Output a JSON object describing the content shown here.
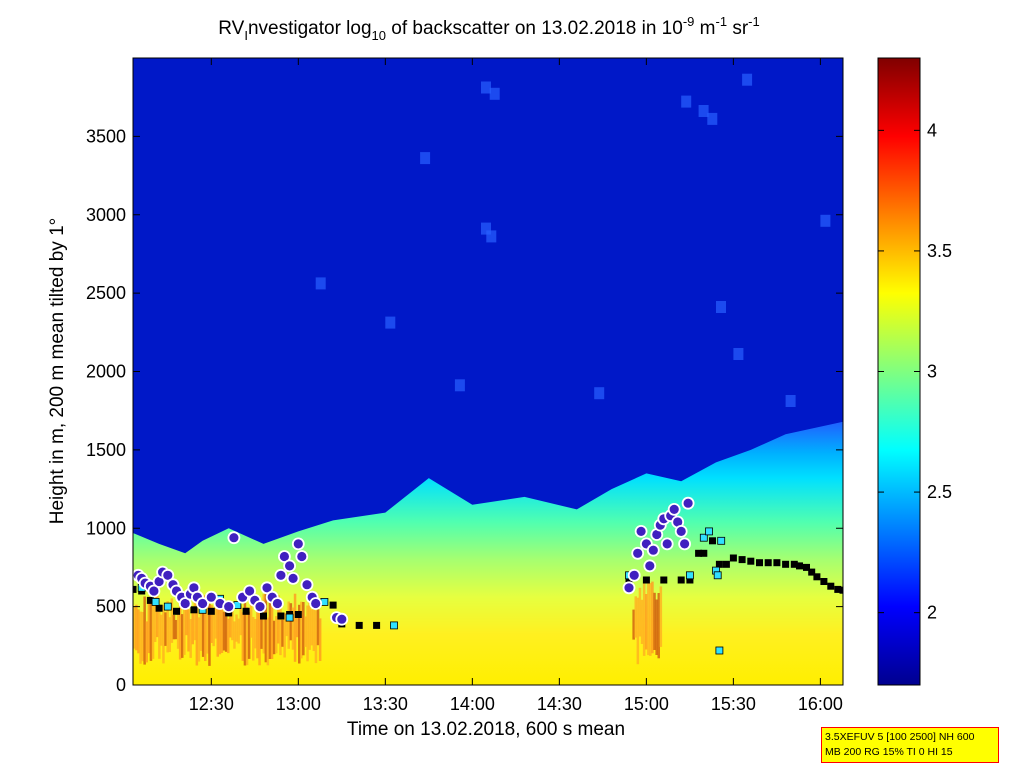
{
  "chart_data": {
    "type": "heatmap",
    "title": {
      "prefix": "RV",
      "prefix_sub": "I",
      "main": "nvestigator log",
      "log_sub": "10",
      "rest": " of backscatter on 13.02.2018 in 10",
      "exp1": "-9",
      "unit1": " m",
      "exp2": "-1",
      "unit2": " sr",
      "exp3": "-1"
    },
    "xlabel": "Time on 13.02.2018, 600 s mean",
    "ylabel": "Height in m, 200 m mean tilted by 1°",
    "x_range_hours": [
      12.05,
      16.13
    ],
    "ylim": [
      0,
      4000
    ],
    "x_ticks": [
      {
        "hour": 12.5,
        "label": "12:30"
      },
      {
        "hour": 13.0,
        "label": "13:00"
      },
      {
        "hour": 13.5,
        "label": "13:30"
      },
      {
        "hour": 14.0,
        "label": "14:00"
      },
      {
        "hour": 14.5,
        "label": "14:30"
      },
      {
        "hour": 15.0,
        "label": "15:00"
      },
      {
        "hour": 15.5,
        "label": "15:30"
      },
      {
        "hour": 16.0,
        "label": "16:00"
      }
    ],
    "y_ticks": [
      0,
      500,
      1000,
      1500,
      2000,
      2500,
      3000,
      3500
    ],
    "colorbar": {
      "range": [
        1.7,
        4.3
      ],
      "ticks": [
        "2",
        "2.5",
        "3",
        "3.5",
        "4"
      ],
      "colormap": [
        "#00008f",
        "#0000ff",
        "#0080ff",
        "#00ffff",
        "#80ff80",
        "#ffff00",
        "#ff8000",
        "#ff0000",
        "#800000"
      ]
    },
    "boundary_upper_m": [
      [
        12.05,
        970
      ],
      [
        12.2,
        900
      ],
      [
        12.35,
        840
      ],
      [
        12.45,
        920
      ],
      [
        12.6,
        1000
      ],
      [
        12.8,
        900
      ],
      [
        13.0,
        980
      ],
      [
        13.2,
        1050
      ],
      [
        13.5,
        1100
      ],
      [
        13.75,
        1320
      ],
      [
        14.0,
        1150
      ],
      [
        14.3,
        1200
      ],
      [
        14.6,
        1120
      ],
      [
        14.8,
        1250
      ],
      [
        15.0,
        1350
      ],
      [
        15.2,
        1300
      ],
      [
        15.4,
        1420
      ],
      [
        15.6,
        1500
      ],
      [
        15.8,
        1600
      ],
      [
        16.13,
        1680
      ]
    ],
    "mixed_layer_top_m": [
      [
        12.05,
        650
      ],
      [
        12.3,
        620
      ],
      [
        12.6,
        600
      ],
      [
        13.0,
        580
      ],
      [
        13.3,
        540
      ],
      [
        13.6,
        560
      ],
      [
        14.0,
        620
      ],
      [
        14.3,
        640
      ],
      [
        14.6,
        650
      ],
      [
        15.0,
        700
      ],
      [
        15.3,
        740
      ],
      [
        15.6,
        780
      ],
      [
        15.9,
        780
      ],
      [
        16.13,
        730
      ]
    ],
    "cloud_points": [
      [
        12.08,
        700
      ],
      [
        12.1,
        680
      ],
      [
        12.12,
        650
      ],
      [
        12.15,
        630
      ],
      [
        12.17,
        600
      ],
      [
        12.2,
        660
      ],
      [
        12.22,
        720
      ],
      [
        12.25,
        700
      ],
      [
        12.28,
        640
      ],
      [
        12.3,
        600
      ],
      [
        12.33,
        560
      ],
      [
        12.35,
        520
      ],
      [
        12.38,
        580
      ],
      [
        12.4,
        620
      ],
      [
        12.42,
        560
      ],
      [
        12.45,
        520
      ],
      [
        12.5,
        560
      ],
      [
        12.55,
        520
      ],
      [
        12.6,
        500
      ],
      [
        12.63,
        940
      ],
      [
        12.68,
        560
      ],
      [
        12.72,
        600
      ],
      [
        12.75,
        540
      ],
      [
        12.78,
        500
      ],
      [
        12.82,
        620
      ],
      [
        12.85,
        560
      ],
      [
        12.88,
        520
      ],
      [
        12.9,
        700
      ],
      [
        12.92,
        820
      ],
      [
        12.95,
        760
      ],
      [
        12.97,
        680
      ],
      [
        13.0,
        900
      ],
      [
        13.02,
        820
      ],
      [
        13.05,
        640
      ],
      [
        13.08,
        560
      ],
      [
        13.1,
        520
      ],
      [
        13.22,
        430
      ],
      [
        13.25,
        420
      ],
      [
        14.9,
        620
      ],
      [
        14.93,
        700
      ],
      [
        14.95,
        840
      ],
      [
        14.97,
        980
      ],
      [
        15.0,
        900
      ],
      [
        15.02,
        760
      ],
      [
        15.04,
        860
      ],
      [
        15.06,
        960
      ],
      [
        15.08,
        1020
      ],
      [
        15.1,
        1060
      ],
      [
        15.12,
        900
      ],
      [
        15.14,
        1080
      ],
      [
        15.16,
        1120
      ],
      [
        15.18,
        1040
      ],
      [
        15.2,
        980
      ],
      [
        15.22,
        900
      ],
      [
        15.24,
        1160
      ]
    ],
    "aerosol_layer_black": [
      [
        12.05,
        610
      ],
      [
        12.1,
        600
      ],
      [
        12.15,
        540
      ],
      [
        12.2,
        490
      ],
      [
        12.3,
        470
      ],
      [
        12.4,
        480
      ],
      [
        12.5,
        470
      ],
      [
        12.6,
        460
      ],
      [
        12.7,
        470
      ],
      [
        12.8,
        440
      ],
      [
        12.9,
        440
      ],
      [
        12.95,
        450
      ],
      [
        13.0,
        450
      ],
      [
        13.1,
        530
      ],
      [
        13.2,
        510
      ],
      [
        13.25,
        390
      ],
      [
        13.35,
        380
      ],
      [
        13.45,
        380
      ],
      [
        13.55,
        380
      ],
      [
        14.9,
        670
      ],
      [
        15.0,
        670
      ],
      [
        15.1,
        670
      ],
      [
        15.2,
        670
      ],
      [
        15.25,
        670
      ],
      [
        15.3,
        840
      ],
      [
        15.33,
        840
      ],
      [
        15.38,
        920
      ],
      [
        15.42,
        770
      ],
      [
        15.46,
        770
      ],
      [
        15.5,
        810
      ],
      [
        15.55,
        800
      ],
      [
        15.6,
        790
      ],
      [
        15.65,
        780
      ],
      [
        15.7,
        780
      ],
      [
        15.75,
        780
      ],
      [
        15.8,
        770
      ],
      [
        15.85,
        770
      ],
      [
        15.88,
        760
      ],
      [
        15.92,
        750
      ],
      [
        15.95,
        720
      ],
      [
        15.98,
        690
      ],
      [
        16.02,
        660
      ],
      [
        16.06,
        630
      ],
      [
        16.1,
        610
      ],
      [
        16.13,
        605
      ]
    ],
    "aerosol_layer_cyan": [
      [
        12.1,
        620
      ],
      [
        12.18,
        530
      ],
      [
        12.25,
        500
      ],
      [
        12.45,
        480
      ],
      [
        12.55,
        550
      ],
      [
        12.65,
        510
      ],
      [
        12.95,
        430
      ],
      [
        13.15,
        530
      ],
      [
        13.25,
        410
      ],
      [
        13.55,
        380
      ],
      [
        14.9,
        700
      ],
      [
        15.25,
        700
      ],
      [
        15.33,
        940
      ],
      [
        15.36,
        980
      ],
      [
        15.4,
        730
      ],
      [
        15.41,
        700
      ],
      [
        15.42,
        220
      ],
      [
        15.43,
        920
      ]
    ]
  },
  "info_box": {
    "line1": "3.5XEFUV 5 [100 2500] NH 600",
    "line2": "MB 200 RG 15% TI 0 HI 15"
  }
}
